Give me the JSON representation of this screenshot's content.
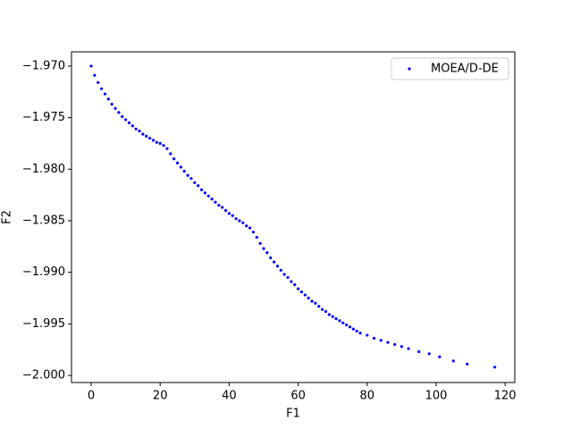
{
  "chart_data": {
    "type": "scatter",
    "x_label": "F1",
    "y_label": "F2",
    "x": [
      0,
      1,
      2,
      3,
      4,
      5,
      6,
      7,
      8,
      9,
      10,
      11,
      12,
      13,
      14,
      15,
      16,
      17,
      18,
      19,
      20,
      21,
      22,
      23,
      24,
      25,
      26,
      27,
      28,
      29,
      30,
      31,
      32,
      33,
      34,
      35,
      36,
      37,
      38,
      39,
      40,
      41,
      42,
      43,
      44,
      45,
      46,
      47,
      48,
      49,
      50,
      51,
      52,
      53,
      54,
      55,
      56,
      57,
      58,
      59,
      60,
      61,
      62,
      63,
      64,
      65,
      66,
      67,
      68,
      69,
      70,
      71,
      72,
      73,
      74,
      75,
      76,
      77,
      78,
      80,
      82,
      84,
      86,
      88,
      90,
      92,
      95,
      98,
      101,
      105,
      109,
      117
    ],
    "series": [
      {
        "name": "MOEA/D-DE",
        "color": "#0000ff",
        "values": [
          -1.97,
          -1.9709,
          -1.9716,
          -1.9722,
          -1.9727,
          -1.9732,
          -1.9737,
          -1.9741,
          -1.9745,
          -1.9749,
          -1.9752,
          -1.9755,
          -1.9758,
          -1.9761,
          -1.9763,
          -1.9766,
          -1.9768,
          -1.977,
          -1.9772,
          -1.9774,
          -1.9775,
          -1.9777,
          -1.978,
          -1.9785,
          -1.979,
          -1.9794,
          -1.9798,
          -1.9802,
          -1.9806,
          -1.9809,
          -1.9813,
          -1.9816,
          -1.982,
          -1.9823,
          -1.9826,
          -1.9829,
          -1.9832,
          -1.9835,
          -1.9837,
          -1.984,
          -1.9843,
          -1.9845,
          -1.9848,
          -1.985,
          -1.9852,
          -1.9855,
          -1.9857,
          -1.9861,
          -1.9866,
          -1.9872,
          -1.9877,
          -1.9881,
          -1.9886,
          -1.989,
          -1.9894,
          -1.9898,
          -1.9902,
          -1.9905,
          -1.9909,
          -1.9912,
          -1.9916,
          -1.9919,
          -1.9922,
          -1.9925,
          -1.9928,
          -1.993,
          -1.9933,
          -1.9936,
          -1.9938,
          -1.9941,
          -1.9943,
          -1.9945,
          -1.9947,
          -1.9949,
          -1.9951,
          -1.9953,
          -1.9955,
          -1.9957,
          -1.9959,
          -1.9961,
          -1.9964,
          -1.9966,
          -1.9968,
          -1.997,
          -1.9972,
          -1.9974,
          -1.9977,
          -1.9979,
          -1.9982,
          -1.9986,
          -1.9989,
          -1.9992
        ]
      }
    ],
    "xlim": [
      -5.7,
      122.8
    ],
    "xticks": [
      0,
      20,
      40,
      60,
      80,
      100,
      120
    ],
    "ylim": [
      -2.00069,
      -1.96862
    ],
    "yticks": [
      {
        "value": -1.97,
        "label": "−1.970"
      },
      {
        "value": -1.975,
        "label": "−1.975"
      },
      {
        "value": -1.98,
        "label": "−1.980"
      },
      {
        "value": -1.985,
        "label": "−1.985"
      },
      {
        "value": -1.99,
        "label": "−1.990"
      },
      {
        "value": -1.995,
        "label": "−1.995"
      },
      {
        "value": -2.0,
        "label": "−2.000"
      }
    ],
    "legend": "upper right",
    "grid": false
  }
}
